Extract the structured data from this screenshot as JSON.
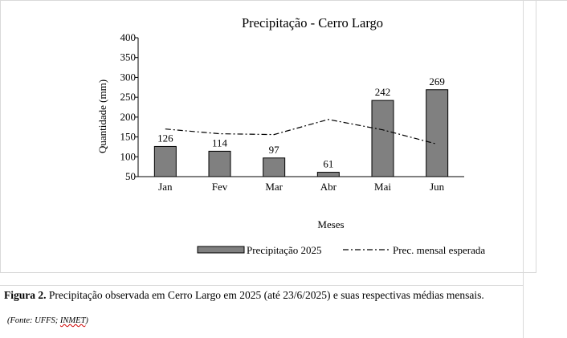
{
  "chart_data": {
    "type": "bar",
    "title": "Precipitação - Cerro Largo",
    "xlabel": "Meses",
    "ylabel": "Quantidade (mm)",
    "categories": [
      "Jan",
      "Fev",
      "Mar",
      "Abr",
      "Mai",
      "Jun"
    ],
    "ylim": [
      50,
      400
    ],
    "yticks": [
      50,
      100,
      150,
      200,
      250,
      300,
      350,
      400
    ],
    "grid": false,
    "legend_position": "bottom",
    "series": [
      {
        "name": "Precipitação 2025",
        "type": "bar",
        "color": "#808080",
        "values": [
          126,
          114,
          97,
          61,
          242,
          269
        ],
        "data_labels": [
          "126",
          "114",
          "97",
          "61",
          "242",
          "269"
        ]
      },
      {
        "name": "Prec. mensal esperada",
        "type": "line",
        "style": "dash-dot",
        "color": "#000000",
        "values": [
          170,
          158,
          156,
          194,
          168,
          132
        ]
      }
    ]
  },
  "caption": {
    "label": "Figura 2.",
    "text": "Precipitação observada em Cerro Largo em 2025 (até 23/6/2025) e suas respectivas médias mensais."
  },
  "source": {
    "prefix": "(Fonte: UFFS; ",
    "highlight": "INMET",
    "suffix": ")"
  }
}
